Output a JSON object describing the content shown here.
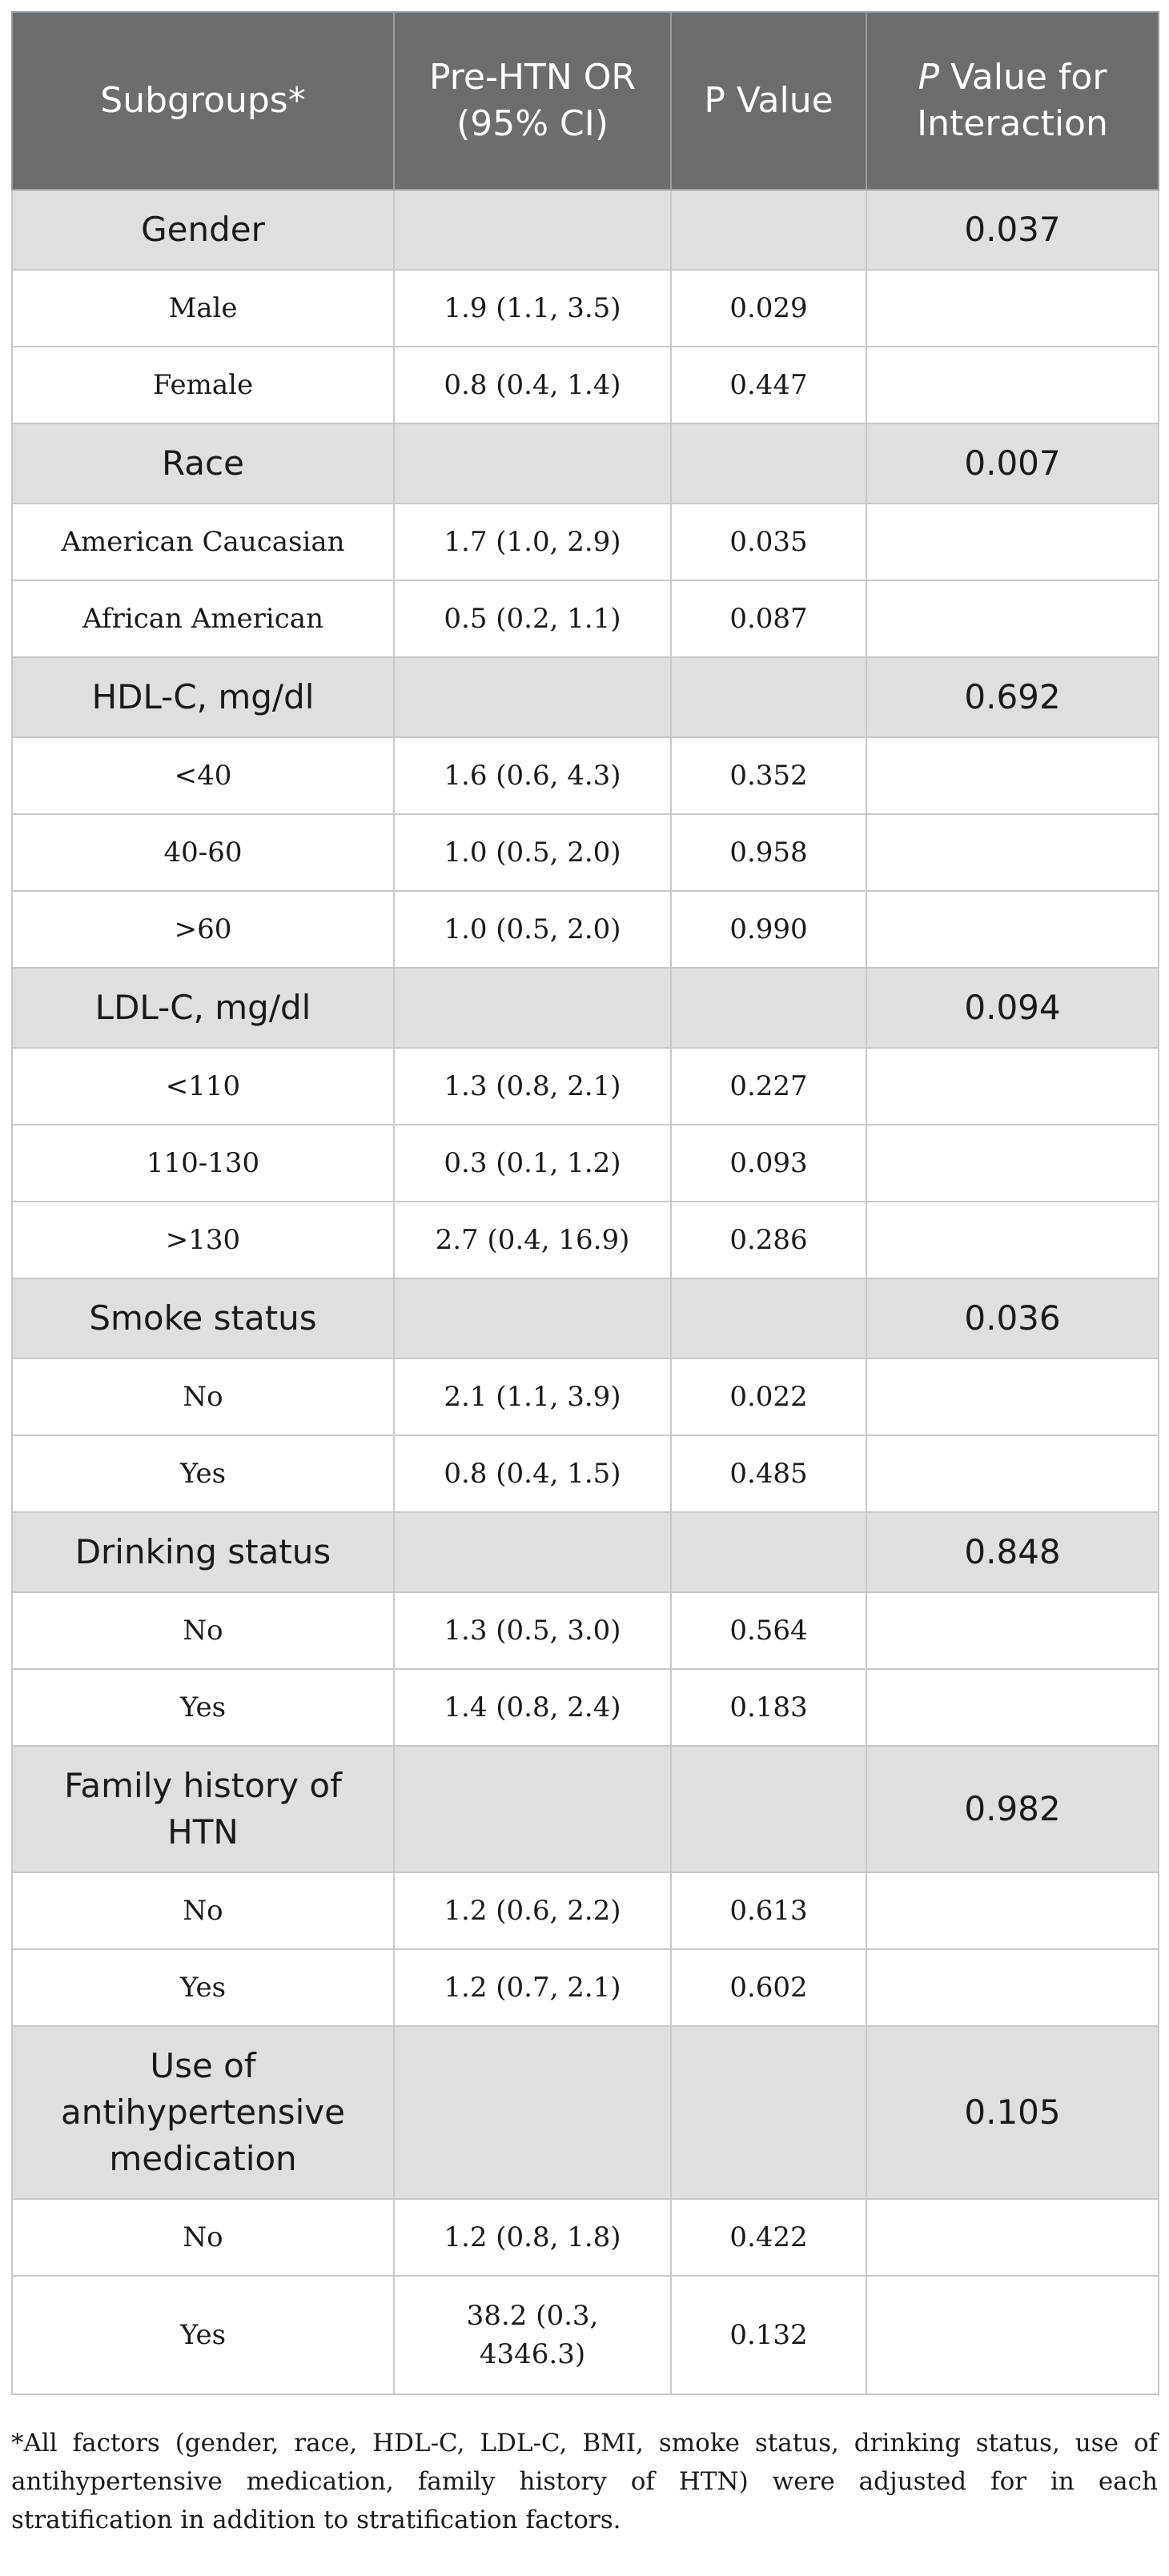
{
  "header": {
    "subgroups": "Subgroups*",
    "or": "Pre-HTN OR (95% CI)",
    "pvalue": "P Value",
    "interaction_p": "P",
    "interaction_rest": "Value for Interaction"
  },
  "groups": [
    {
      "label": "Gender",
      "p_interaction": "0.037",
      "rows": [
        {
          "label": "Male",
          "or": "1.9 (1.1, 3.5)",
          "p": "0.029"
        },
        {
          "label": "Female",
          "or": "0.8 (0.4, 1.4)",
          "p": "0.447"
        }
      ]
    },
    {
      "label": "Race",
      "p_interaction": "0.007",
      "rows": [
        {
          "label": "American Caucasian",
          "or": "1.7 (1.0, 2.9)",
          "p": "0.035"
        },
        {
          "label": "African American",
          "or": "0.5 (0.2, 1.1)",
          "p": "0.087"
        }
      ]
    },
    {
      "label": "HDL-C, mg/dl",
      "p_interaction": "0.692",
      "rows": [
        {
          "label": "<40",
          "or": "1.6 (0.6, 4.3)",
          "p": "0.352"
        },
        {
          "label": "40-60",
          "or": "1.0 (0.5, 2.0)",
          "p": "0.958"
        },
        {
          "label": ">60",
          "or": "1.0 (0.5, 2.0)",
          "p": "0.990"
        }
      ]
    },
    {
      "label": "LDL-C, mg/dl",
      "p_interaction": "0.094",
      "rows": [
        {
          "label": "<110",
          "or": "1.3 (0.8, 2.1)",
          "p": "0.227"
        },
        {
          "label": "110-130",
          "or": "0.3 (0.1, 1.2)",
          "p": "0.093"
        },
        {
          "label": ">130",
          "or": "2.7 (0.4, 16.9)",
          "p": "0.286"
        }
      ]
    },
    {
      "label": "Smoke status",
      "p_interaction": "0.036",
      "rows": [
        {
          "label": "No",
          "or": "2.1 (1.1, 3.9)",
          "p": "0.022"
        },
        {
          "label": "Yes",
          "or": "0.8 (0.4, 1.5)",
          "p": "0.485"
        }
      ]
    },
    {
      "label": "Drinking status",
      "p_interaction": "0.848",
      "rows": [
        {
          "label": "No",
          "or": "1.3 (0.5, 3.0)",
          "p": "0.564"
        },
        {
          "label": "Yes",
          "or": "1.4 (0.8, 2.4)",
          "p": "0.183"
        }
      ]
    },
    {
      "label": "Family history of HTN",
      "p_interaction": "0.982",
      "rows": [
        {
          "label": "No",
          "or": "1.2 (0.6, 2.2)",
          "p": "0.613"
        },
        {
          "label": "Yes",
          "or": "1.2 (0.7, 2.1)",
          "p": "0.602"
        }
      ]
    },
    {
      "label": "Use of antihypertensive medication",
      "p_interaction": "0.105",
      "rows": [
        {
          "label": "No",
          "or": "1.2 (0.8, 1.8)",
          "p": "0.422"
        },
        {
          "label": "Yes",
          "or": "38.2 (0.3, 4346.3)",
          "p": "0.132"
        }
      ]
    }
  ],
  "footnote": "*All factors (gender, race, HDL-C, LDL-C, BMI, smoke status, drinking status, use of antihypertensive medication, family history of HTN) were adjusted for in each stratification in addition to stratification factors."
}
